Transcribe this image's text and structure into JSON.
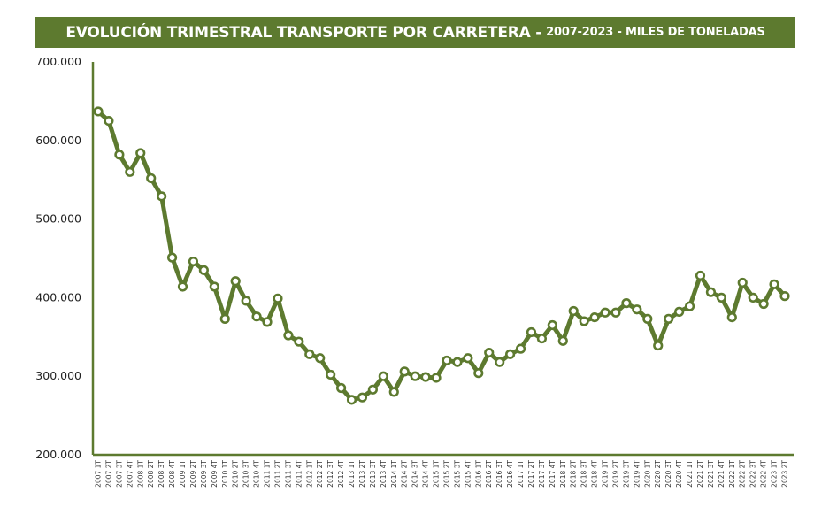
{
  "title": "EVOLUCIÓN TRIMESTRAL TRANSPORTE POR CARRETERA -",
  "subtitle": "2007-2023 - MILES DE TONELADAS",
  "colors": {
    "header_bg": "#5d7a2f",
    "line": "#5d7a2f",
    "header_text": "#ffffff"
  },
  "chart_data": {
    "type": "line",
    "title": "EVOLUCIÓN TRIMESTRAL TRANSPORTE POR CARRETERA - 2007-2023 - MILES DE TONELADAS",
    "xlabel": "",
    "ylabel": "",
    "ylim": [
      200000,
      700000
    ],
    "yticks": [
      200000,
      300000,
      400000,
      500000,
      600000,
      700000
    ],
    "ytick_labels": [
      "200.000",
      "300.000",
      "400.000",
      "500.000",
      "600.000",
      "700.000"
    ],
    "grid": false,
    "legend": "none",
    "categories": [
      "2007 1T",
      "2007 2T",
      "2007 3T",
      "2007 4T",
      "2008 1T",
      "2008 2T",
      "2008 3T",
      "2008 4T",
      "2009 1T",
      "2009 2T",
      "2009 3T",
      "2009 4T",
      "2010 1T",
      "2010 2T",
      "2010 3T",
      "2010 4T",
      "2011 1T",
      "2011 2T",
      "2011 3T",
      "2011 4T",
      "2012 1T",
      "2012 2T",
      "2012 3T",
      "2012 4T",
      "2013 1T",
      "2013 2T",
      "2013 3T",
      "2013 4T",
      "2014 1T",
      "2014 2T",
      "2014 3T",
      "2014 4T",
      "2015 1T",
      "2015 2T",
      "2015 3T",
      "2015 4T",
      "2016 1T",
      "2016 2T",
      "2016 3T",
      "2016 4T",
      "2017 1T",
      "2017 2T",
      "2017 3T",
      "2017 4T",
      "2018 1T",
      "2018 2T",
      "2018 3T",
      "2018 4T",
      "2019 1T",
      "2019 2T",
      "2019 3T",
      "2019 4T",
      "2020 1T",
      "2020 2T",
      "2020 3T",
      "2020 4T",
      "2021 1T",
      "2021 2T",
      "2021 3T",
      "2021 4T",
      "2022 1T",
      "2022 2T",
      "2022 3T",
      "2022 4T",
      "2023 1T",
      "2023 2T"
    ],
    "values": [
      637000,
      625000,
      582000,
      560000,
      584000,
      552000,
      529000,
      451000,
      414000,
      446000,
      435000,
      414000,
      373000,
      421000,
      396000,
      376000,
      369000,
      399000,
      352000,
      344000,
      328000,
      323000,
      302000,
      285000,
      270000,
      273000,
      283000,
      300000,
      280000,
      306000,
      300000,
      299000,
      298000,
      320000,
      318000,
      323000,
      304000,
      330000,
      318000,
      328000,
      335000,
      356000,
      348000,
      365000,
      345000,
      383000,
      370000,
      375000,
      381000,
      381000,
      393000,
      385000,
      373000,
      339000,
      373000,
      382000,
      389000,
      428000,
      407000,
      400000,
      375000,
      419000,
      400000,
      392000,
      417000,
      402000
    ]
  }
}
